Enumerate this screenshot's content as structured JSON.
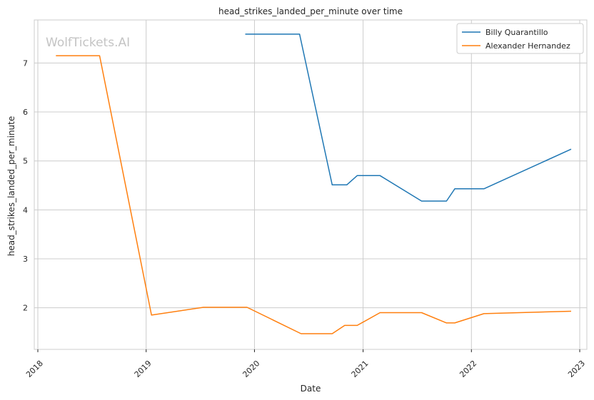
{
  "chart_data": {
    "type": "line",
    "title": "head_strikes_landed_per_minute over time",
    "xlabel": "Date",
    "ylabel": "head_strikes_landed_per_minute",
    "watermark": "WolfTickets.AI",
    "x_type": "date",
    "xlim": [
      "2017-12-20",
      "2023-01-25"
    ],
    "ylim": [
      1.15,
      7.88
    ],
    "xticks": [
      {
        "date": "2018-01-01",
        "label": "2018"
      },
      {
        "date": "2019-01-01",
        "label": "2019"
      },
      {
        "date": "2020-01-01",
        "label": "2020"
      },
      {
        "date": "2021-01-01",
        "label": "2021"
      },
      {
        "date": "2022-01-01",
        "label": "2022"
      },
      {
        "date": "2023-01-01",
        "label": "2023"
      }
    ],
    "yticks": [
      2,
      3,
      4,
      5,
      6,
      7
    ],
    "grid": true,
    "legend_position": "top-right",
    "series": [
      {
        "name": "Billy Quarantillo",
        "color": "#1f77b4",
        "points": [
          {
            "x": "2019-12-01",
            "y": 7.59
          },
          {
            "x": "2020-06-01",
            "y": 7.59
          },
          {
            "x": "2020-09-19",
            "y": 4.51
          },
          {
            "x": "2020-11-07",
            "y": 4.51
          },
          {
            "x": "2020-12-12",
            "y": 4.7
          },
          {
            "x": "2021-02-27",
            "y": 4.7
          },
          {
            "x": "2021-07-17",
            "y": 4.18
          },
          {
            "x": "2021-10-09",
            "y": 4.18
          },
          {
            "x": "2021-11-06",
            "y": 4.43
          },
          {
            "x": "2022-02-12",
            "y": 4.43
          },
          {
            "x": "2022-12-03",
            "y": 5.24
          }
        ]
      },
      {
        "name": "Alexander Hernandez",
        "color": "#ff7f0e",
        "points": [
          {
            "x": "2018-03-03",
            "y": 7.15
          },
          {
            "x": "2018-07-28",
            "y": 7.15
          },
          {
            "x": "2019-01-19",
            "y": 1.85
          },
          {
            "x": "2019-07-13",
            "y": 2.01
          },
          {
            "x": "2019-12-07",
            "y": 2.01
          },
          {
            "x": "2020-06-06",
            "y": 1.47
          },
          {
            "x": "2020-09-19",
            "y": 1.47
          },
          {
            "x": "2020-10-31",
            "y": 1.64
          },
          {
            "x": "2020-12-12",
            "y": 1.64
          },
          {
            "x": "2021-02-27",
            "y": 1.9
          },
          {
            "x": "2021-07-17",
            "y": 1.9
          },
          {
            "x": "2021-10-09",
            "y": 1.69
          },
          {
            "x": "2021-11-06",
            "y": 1.69
          },
          {
            "x": "2022-02-12",
            "y": 1.88
          },
          {
            "x": "2022-12-03",
            "y": 1.93
          }
        ]
      }
    ]
  }
}
